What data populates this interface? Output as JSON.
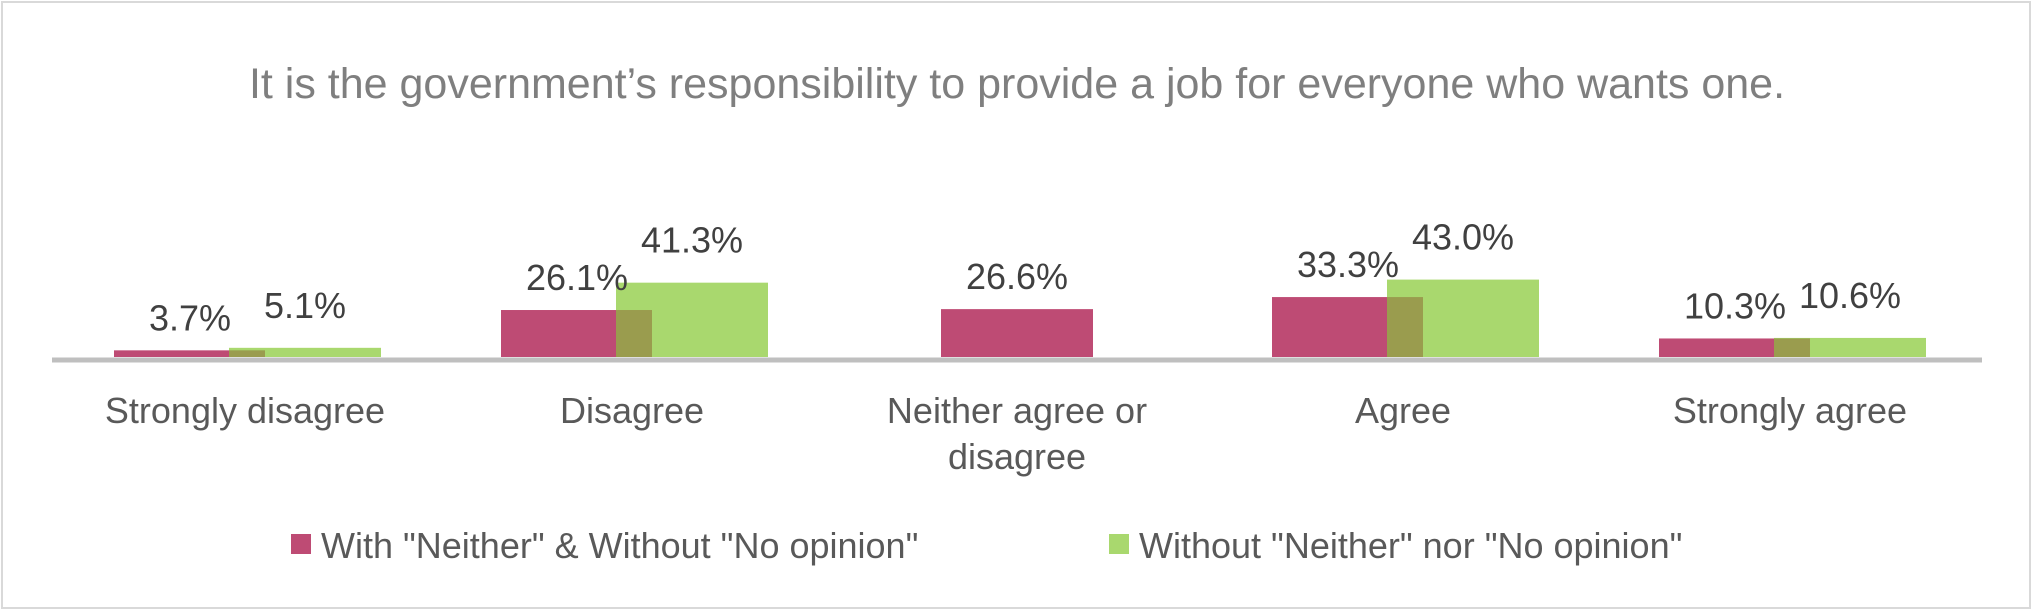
{
  "chart_data": {
    "type": "bar",
    "title": "It is the government’s responsibility to provide a job for everyone who wants one.",
    "categories": [
      [
        "Strongly disagree"
      ],
      [
        "Disagree"
      ],
      [
        "Neither agree or",
        "disagree"
      ],
      [
        "Agree"
      ],
      [
        "Strongly agree"
      ]
    ],
    "series": [
      {
        "name": "With \"Neither\" & Without \"No opinion\"",
        "color": "#be4b74",
        "values": [
          3.7,
          26.1,
          26.6,
          33.3,
          10.3
        ],
        "labels": [
          "3.7%",
          "26.1%",
          "26.6%",
          "33.3%",
          "10.3%"
        ]
      },
      {
        "name": "Without \"Neither\" nor \"No opinion\"",
        "color": "#a9d86e",
        "values": [
          5.1,
          41.3,
          null,
          43.0,
          10.6
        ],
        "labels": [
          "5.1%",
          "41.3%",
          "",
          "43.0%",
          "10.6%"
        ]
      }
    ],
    "overlap_color": "#9a9c4e",
    "ylim": [
      0,
      50
    ],
    "xlabel": "",
    "ylabel": "",
    "grid": false,
    "legend_position": "bottom"
  }
}
